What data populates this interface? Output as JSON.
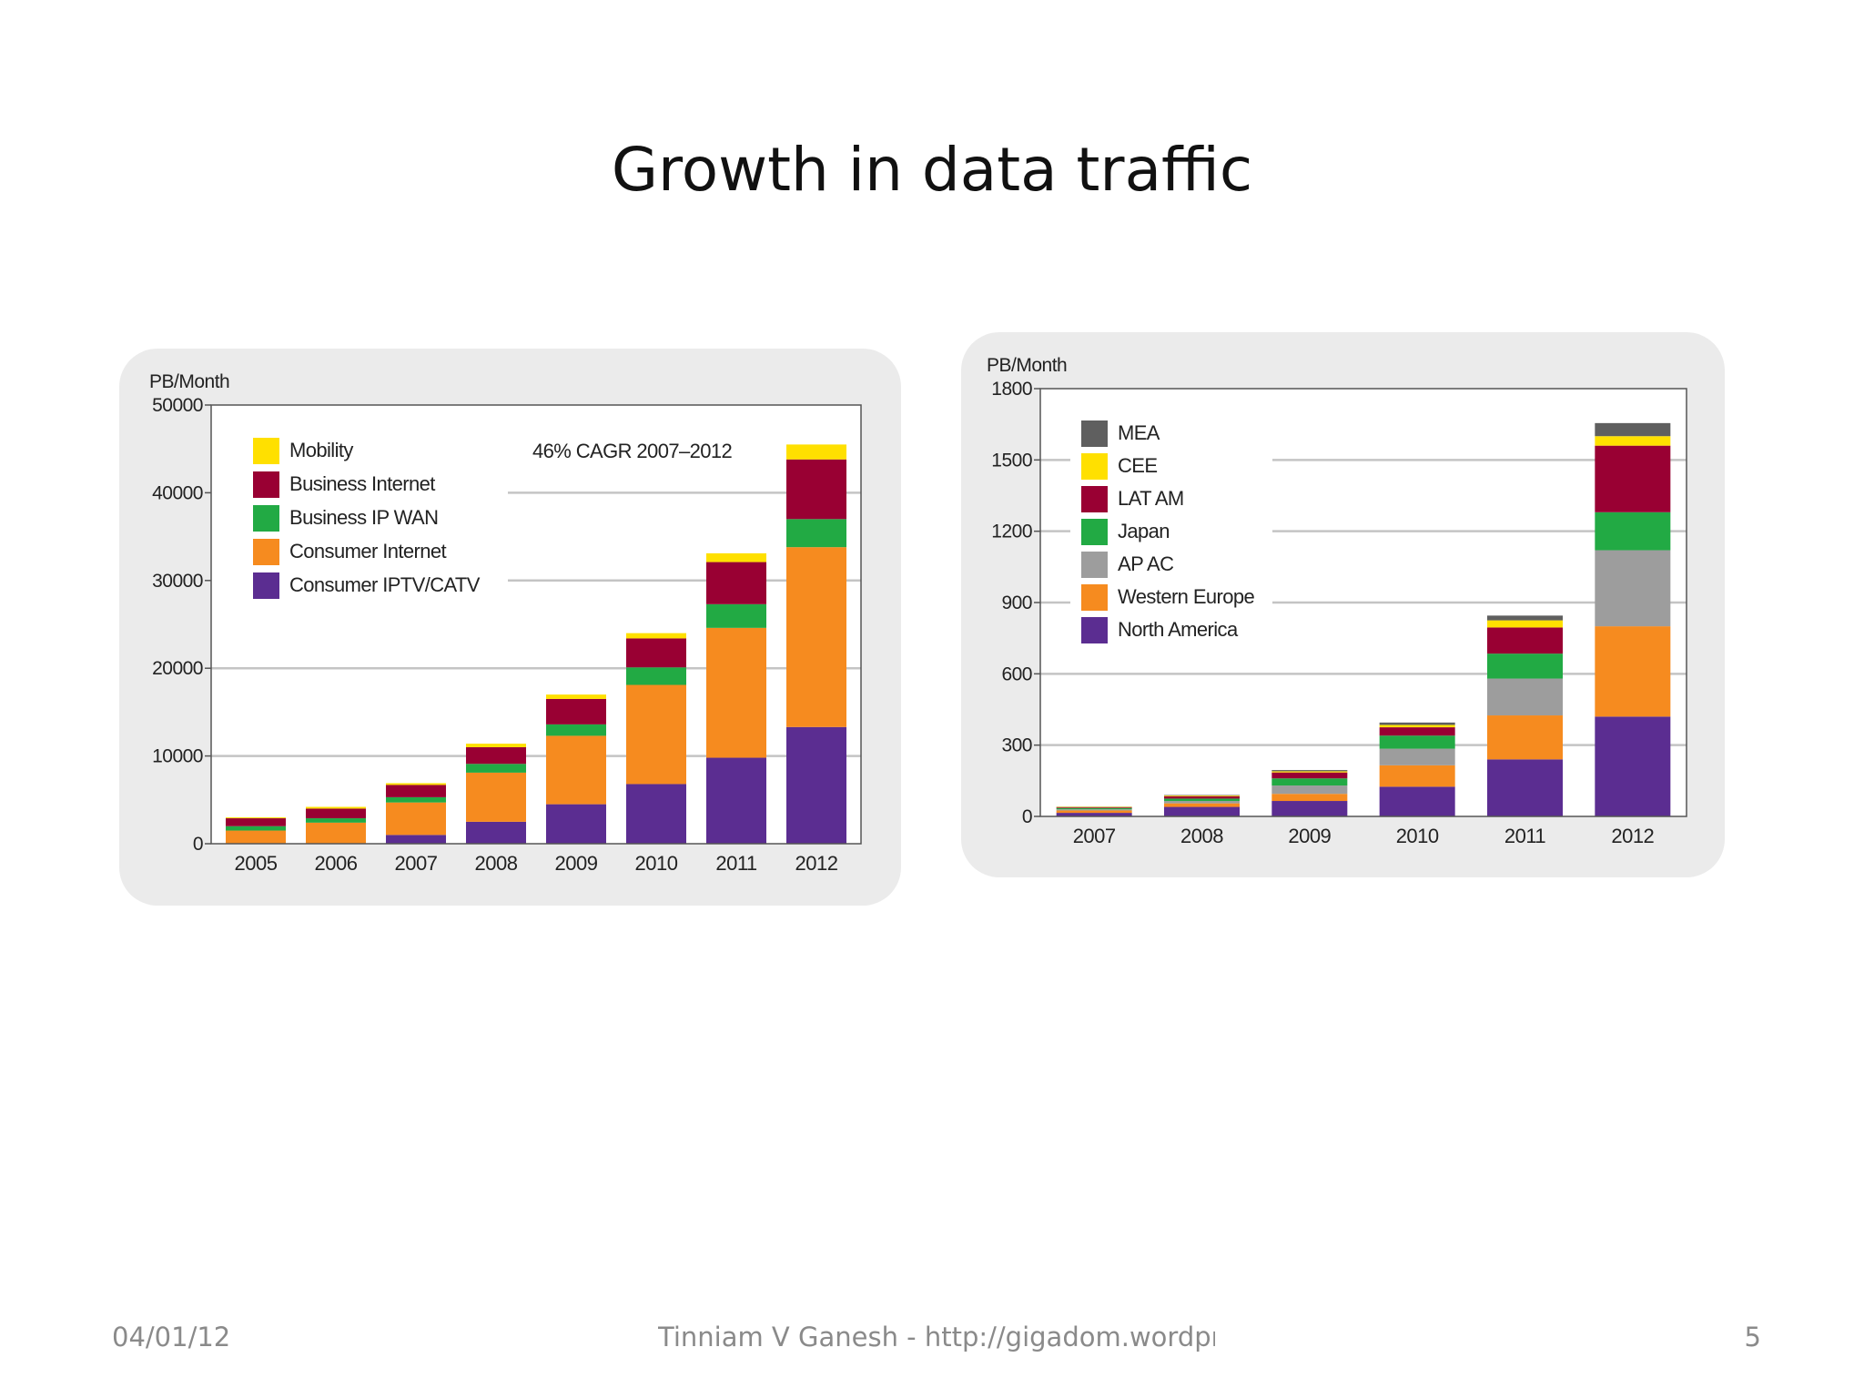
{
  "slide": {
    "title": "Growth in data traffic",
    "footer_date": "04/01/12",
    "footer_author": "Tinniam V Ganesh - http://gigadom.wordpress.com",
    "page_number": "5"
  },
  "colors": {
    "Mobility": "#ffe000",
    "Business Internet": "#990033",
    "Business IP WAN": "#22aa44",
    "Consumer Internet": "#f68b1f",
    "Consumer IPTV/CATV": "#5b2d91",
    "MEA": "#5f5f5f",
    "CEE": "#ffe000",
    "LAT AM": "#990033",
    "Japan": "#22aa44",
    "AP AC": "#9d9d9d",
    "Western Europe": "#f68b1f",
    "North America": "#5b2d91"
  },
  "chart_data": [
    {
      "type": "bar",
      "stacked": true,
      "unit_label": "PB/Month",
      "annotation": "46% CAGR 2007–2012",
      "categories": [
        "2005",
        "2006",
        "2007",
        "2008",
        "2009",
        "2010",
        "2011",
        "2012"
      ],
      "ylim": [
        0,
        50000
      ],
      "yticks": [
        0,
        10000,
        20000,
        30000,
        40000,
        50000
      ],
      "grid": true,
      "legend_position": "top-left",
      "series": [
        {
          "name": "Consumer IPTV/CATV",
          "values": [
            0,
            0,
            1000,
            2500,
            4500,
            6800,
            9800,
            13300
          ]
        },
        {
          "name": "Consumer Internet",
          "values": [
            1500,
            2400,
            3700,
            5600,
            7800,
            11300,
            14800,
            20500
          ]
        },
        {
          "name": "Business IP WAN",
          "values": [
            500,
            500,
            600,
            1000,
            1300,
            2000,
            2700,
            3200
          ]
        },
        {
          "name": "Business Internet",
          "values": [
            900,
            1100,
            1400,
            1900,
            2900,
            3300,
            4800,
            6800
          ]
        },
        {
          "name": "Mobility",
          "values": [
            100,
            200,
            200,
            400,
            500,
            600,
            1000,
            1700
          ]
        }
      ]
    },
    {
      "type": "bar",
      "stacked": true,
      "unit_label": "PB/Month",
      "categories": [
        "2007",
        "2008",
        "2009",
        "2010",
        "2011",
        "2012"
      ],
      "ylim": [
        0,
        1800
      ],
      "yticks": [
        0,
        300,
        600,
        900,
        1200,
        1500,
        1800
      ],
      "grid": true,
      "legend_position": "top-left",
      "series": [
        {
          "name": "North America",
          "values": [
            15,
            40,
            65,
            125,
            240,
            420
          ]
        },
        {
          "name": "Western Europe",
          "values": [
            10,
            15,
            30,
            90,
            185,
            380
          ]
        },
        {
          "name": "AP AC",
          "values": [
            5,
            10,
            35,
            70,
            155,
            320
          ]
        },
        {
          "name": "Japan",
          "values": [
            5,
            10,
            30,
            55,
            105,
            160
          ]
        },
        {
          "name": "LAT AM",
          "values": [
            3,
            10,
            25,
            35,
            110,
            280
          ]
        },
        {
          "name": "CEE",
          "values": [
            2,
            3,
            5,
            10,
            30,
            40
          ]
        },
        {
          "name": "MEA",
          "values": [
            1,
            2,
            5,
            10,
            20,
            55
          ]
        }
      ]
    }
  ]
}
